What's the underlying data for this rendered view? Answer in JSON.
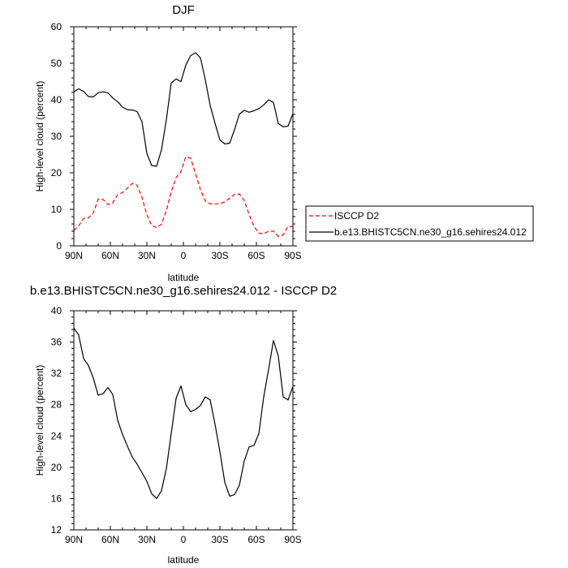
{
  "chart_data": [
    {
      "type": "line",
      "title": "DJF",
      "xlabel": "latitude",
      "ylabel": "High-level cloud (percent)",
      "xlim": [
        90,
        -90
      ],
      "ylim": [
        0,
        60
      ],
      "x_tick_values": [
        90,
        60,
        30,
        0,
        -30,
        -60,
        -90
      ],
      "x_tick_labels": [
        "90N",
        "60N",
        "30N",
        "0",
        "30S",
        "60S",
        "90S"
      ],
      "y_tick_values": [
        0,
        10,
        20,
        30,
        40,
        50,
        60
      ],
      "y_tick_labels": [
        "0",
        "10",
        "20",
        "30",
        "40",
        "50",
        "60"
      ],
      "legend_position": "right",
      "series": [
        {
          "name": "ISCCP D2",
          "color": "#ff0000",
          "dash": "dashed",
          "x": [
            90,
            86,
            82,
            78,
            74,
            70,
            66,
            62,
            58,
            54,
            50,
            46,
            42,
            38,
            34,
            30,
            26,
            22,
            18,
            14,
            10,
            6,
            2,
            -2,
            -6,
            -10,
            -14,
            -18,
            -22,
            -26,
            -30,
            -34,
            -38,
            -42,
            -46,
            -50,
            -54,
            -58,
            -62,
            -66,
            -70,
            -74,
            -78,
            -82,
            -86,
            -90
          ],
          "y": [
            4.2,
            5.5,
            7.5,
            7.7,
            9,
            12.8,
            12.7,
            11.3,
            11.8,
            14,
            14.6,
            15.8,
            17.1,
            16.6,
            13.3,
            8.5,
            5.6,
            5.0,
            5.9,
            9.6,
            14.8,
            18.7,
            20.3,
            24.4,
            24,
            19.8,
            15.4,
            12.3,
            11.5,
            11.5,
            11.6,
            12.0,
            13.1,
            14.1,
            14.2,
            12.4,
            8.6,
            5.3,
            3.5,
            3.3,
            4.0,
            4.0,
            2.6,
            3.0,
            5.3,
            5.3
          ]
        },
        {
          "name": "b.e13.BHISTC5CN.ne30_g16.sehires24.012",
          "color": "#000000",
          "dash": "solid",
          "x": [
            90,
            86,
            82,
            78,
            74,
            70,
            66,
            62,
            58,
            54,
            50,
            46,
            42,
            38,
            34,
            30,
            26,
            22,
            18,
            14,
            10,
            6,
            2,
            -2,
            -6,
            -10,
            -14,
            -18,
            -22,
            -26,
            -30,
            -34,
            -38,
            -42,
            -46,
            -50,
            -54,
            -58,
            -62,
            -66,
            -70,
            -74,
            -78,
            -82,
            -86,
            -90
          ],
          "y": [
            42.2,
            43,
            42.3,
            40.9,
            40.8,
            41.9,
            42.2,
            41.9,
            40.5,
            39.5,
            38,
            37.3,
            37.2,
            36.8,
            34,
            25.3,
            22,
            21.8,
            26.3,
            34.5,
            44.6,
            45.7,
            45,
            49.5,
            52.1,
            52.9,
            51.5,
            45.5,
            38.5,
            33.6,
            29,
            27.9,
            28.1,
            31.8,
            36.1,
            37.1,
            36.6,
            37,
            37.6,
            38.6,
            40,
            39.3,
            33.5,
            32.6,
            32.8,
            36.2
          ]
        }
      ]
    },
    {
      "type": "line",
      "title": "b.e13.BHISTC5CN.ne30_g16.sehires24.012 - ISCCP D2",
      "xlabel": "latitude",
      "ylabel": "High-level cloud (percent)",
      "xlim": [
        90,
        -90
      ],
      "ylim": [
        12,
        40
      ],
      "x_tick_values": [
        90,
        60,
        30,
        0,
        -30,
        -60,
        -90
      ],
      "x_tick_labels": [
        "90N",
        "60N",
        "30N",
        "0",
        "30S",
        "60S",
        "90S"
      ],
      "y_tick_values": [
        12,
        16,
        20,
        24,
        28,
        32,
        36,
        40
      ],
      "y_tick_labels": [
        "12",
        "16",
        "20",
        "24",
        "28",
        "32",
        "36",
        "40"
      ],
      "series": [
        {
          "color": "#000000",
          "dash": "solid",
          "x": [
            90,
            86,
            82,
            78,
            74,
            70,
            66,
            62,
            58,
            54,
            50,
            46,
            42,
            38,
            34,
            30,
            26,
            22,
            18,
            14,
            10,
            6,
            2,
            -2,
            -6,
            -10,
            -14,
            -18,
            -22,
            -26,
            -30,
            -34,
            -38,
            -42,
            -46,
            -50,
            -54,
            -58,
            -62,
            -66,
            -70,
            -74,
            -78,
            -82,
            -86,
            -90
          ],
          "y": [
            37.8,
            36.9,
            33.9,
            33,
            31.4,
            29.2,
            29.4,
            30.2,
            29.3,
            26,
            24.2,
            22.7,
            21.3,
            20.4,
            19.3,
            18.2,
            16.6,
            16.0,
            17,
            19.8,
            24.3,
            28.8,
            30.4,
            28,
            27.1,
            27.4,
            27.9,
            29.0,
            28.6,
            25.5,
            22,
            18.1,
            16.3,
            16.5,
            17.7,
            20.8,
            22.6,
            22.8,
            24.3,
            29,
            32.5,
            36.2,
            34.2,
            29,
            28.6,
            30.3
          ]
        }
      ]
    }
  ]
}
